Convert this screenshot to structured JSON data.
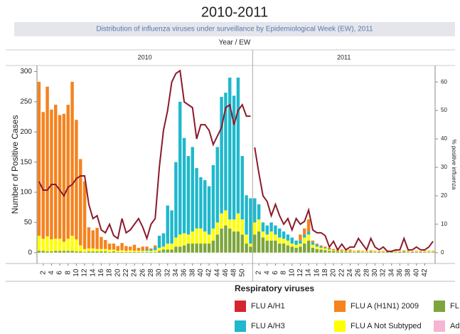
{
  "chart_data": {
    "type": "bar",
    "title": "2010-2011",
    "subtitle": "Distribution of influenza viruses under surveillance by Epidemiological Week (EW), 2011",
    "x_label": "Year  /  EW",
    "y_label": "Number of Positive Cases",
    "y2_label": "% positive influenza",
    "legend_title": "Respiratory viruses",
    "ylim": [
      -18,
      310
    ],
    "yticks": [
      0,
      50,
      100,
      150,
      200,
      250,
      300
    ],
    "y2lim": [
      -3.8,
      65.8
    ],
    "y2ticks": [
      0,
      10,
      20,
      30,
      40,
      50,
      60
    ],
    "line_color": "#8b1a2b",
    "panels": [
      {
        "label": "2010",
        "categories": [
          null,
          "2",
          null,
          "4",
          null,
          "6",
          null,
          "8",
          null,
          "10",
          null,
          "12",
          null,
          "14",
          null,
          "16",
          null,
          "18",
          null,
          "20",
          null,
          "22",
          null,
          "24",
          null,
          "26",
          null,
          "28",
          null,
          "30",
          null,
          "32",
          null,
          "34",
          null,
          "36",
          null,
          "38",
          null,
          "40",
          null,
          "42",
          null,
          "44",
          null,
          "46",
          null,
          "48",
          null,
          "50",
          null,
          null
        ],
        "line": [
          25,
          22,
          22,
          24,
          24,
          22,
          20,
          23,
          24,
          26,
          27,
          27,
          17,
          12,
          13,
          8,
          7,
          10,
          6,
          5,
          12,
          7,
          8,
          10,
          12,
          9,
          5,
          10,
          12,
          30,
          43,
          50,
          60,
          63,
          64,
          53,
          52,
          51,
          40,
          45,
          45,
          43,
          38,
          41,
          44,
          51,
          52,
          45,
          50,
          52,
          48,
          48
        ]
      },
      {
        "label": "2011",
        "categories": [
          null,
          "2",
          null,
          "4",
          null,
          "6",
          null,
          "8",
          null,
          "10",
          null,
          "12",
          null,
          "14",
          null,
          "16",
          null,
          "18",
          null,
          "20",
          null,
          "22",
          null,
          "24",
          null,
          "26",
          null,
          "28",
          null,
          "30",
          null,
          "32",
          null,
          "34",
          null,
          "36",
          null,
          "38",
          null,
          "40",
          null,
          "42",
          null,
          null
        ],
        "line": [
          37,
          28,
          20,
          18,
          13,
          17,
          13,
          10,
          12,
          8,
          12,
          10,
          11,
          15,
          8,
          7,
          7,
          6,
          2,
          4,
          1,
          3,
          1,
          2,
          2,
          5,
          3,
          1,
          5,
          2,
          1,
          2,
          0.5,
          0.5,
          1,
          1,
          5,
          1,
          1,
          2,
          1,
          1,
          2,
          4
        ]
      }
    ],
    "series": [
      {
        "name": "FLU A/H1",
        "color": "#d7252f"
      },
      {
        "name": "FLU A (H1N1) 2009",
        "color": "#f5831f",
        "values": [
          [
            255,
            210,
            248,
            215,
            222,
            205,
            212,
            222,
            255,
            198,
            143,
            112,
            35,
            30,
            35,
            20,
            15,
            10,
            10,
            8,
            12,
            8,
            6,
            10,
            5,
            6,
            5,
            2,
            3,
            0,
            0,
            0,
            0,
            0,
            0,
            0,
            0,
            0,
            0,
            0,
            0,
            0,
            0,
            0,
            0,
            0,
            0,
            0,
            0,
            0,
            0,
            0
          ],
          [
            0,
            0,
            0,
            0,
            0,
            0,
            0,
            0,
            0,
            0,
            0,
            10,
            10,
            20,
            3,
            2,
            2,
            2,
            2,
            2,
            2,
            2,
            1,
            2,
            1,
            1,
            1,
            1,
            1,
            1,
            1,
            1,
            1,
            1,
            1,
            1,
            1,
            1,
            1,
            1,
            1,
            1,
            1,
            1
          ]
        ]
      },
      {
        "name": "FL",
        "color": "#7da53c",
        "values": [
          [
            3,
            3,
            2,
            2,
            3,
            3,
            3,
            3,
            3,
            2,
            2,
            1,
            2,
            2,
            2,
            2,
            2,
            1,
            2,
            1,
            1,
            1,
            1,
            1,
            1,
            1,
            1,
            1,
            1,
            3,
            5,
            5,
            5,
            10,
            10,
            12,
            15,
            15,
            15,
            15,
            15,
            15,
            20,
            30,
            40,
            45,
            40,
            35,
            35,
            30,
            15,
            10
          ],
          [
            30,
            35,
            25,
            20,
            20,
            20,
            15,
            15,
            12,
            10,
            8,
            10,
            15,
            20,
            8,
            6,
            5,
            4,
            3,
            3,
            2,
            2,
            2,
            2,
            1,
            2,
            1,
            1,
            2,
            1,
            1,
            1,
            1,
            1,
            1,
            1,
            2,
            1,
            1,
            1,
            1,
            1,
            1,
            1
          ]
        ]
      },
      {
        "name": "FLU A/H3",
        "color": "#1fb8cc",
        "values": [
          [
            0,
            0,
            0,
            0,
            0,
            0,
            0,
            0,
            0,
            0,
            0,
            0,
            0,
            0,
            0,
            0,
            0,
            0,
            0,
            0,
            0,
            0,
            0,
            0,
            0,
            1,
            2,
            2,
            5,
            20,
            22,
            63,
            55,
            125,
            220,
            158,
            130,
            140,
            100,
            85,
            85,
            80,
            105,
            125,
            193,
            195,
            235,
            205,
            225,
            105,
            65,
            75
          ],
          [
            40,
            25,
            15,
            15,
            15,
            15,
            15,
            12,
            10,
            10,
            7,
            5,
            5,
            5,
            4,
            3,
            2,
            1,
            1,
            0,
            0,
            0,
            0,
            0,
            0,
            0,
            0,
            0,
            0,
            0,
            0,
            0,
            0,
            0,
            0,
            0,
            0,
            0,
            0,
            0,
            0,
            0,
            0,
            0
          ]
        ]
      },
      {
        "name": "FLU A Not Subtyped",
        "color": "#ffff00",
        "values": [
          [
            25,
            20,
            25,
            20,
            20,
            20,
            15,
            20,
            25,
            20,
            10,
            5,
            5,
            5,
            4,
            4,
            4,
            4,
            3,
            2,
            3,
            2,
            3,
            2,
            2,
            2,
            2,
            2,
            3,
            5,
            5,
            10,
            10,
            15,
            20,
            20,
            15,
            20,
            25,
            25,
            20,
            15,
            20,
            20,
            25,
            25,
            15,
            20,
            30,
            25,
            15,
            5
          ],
          [
            20,
            20,
            10,
            10,
            15,
            10,
            10,
            8,
            8,
            5,
            5,
            5,
            10,
            10,
            5,
            4,
            3,
            3,
            2,
            1,
            1,
            1,
            1,
            1,
            1,
            1,
            1,
            1,
            1,
            1,
            0,
            1,
            0,
            0,
            1,
            0,
            1,
            1,
            0,
            1,
            0,
            1,
            1,
            1
          ]
        ]
      },
      {
        "name": "Ad",
        "color": "#f4b6d2"
      }
    ]
  }
}
